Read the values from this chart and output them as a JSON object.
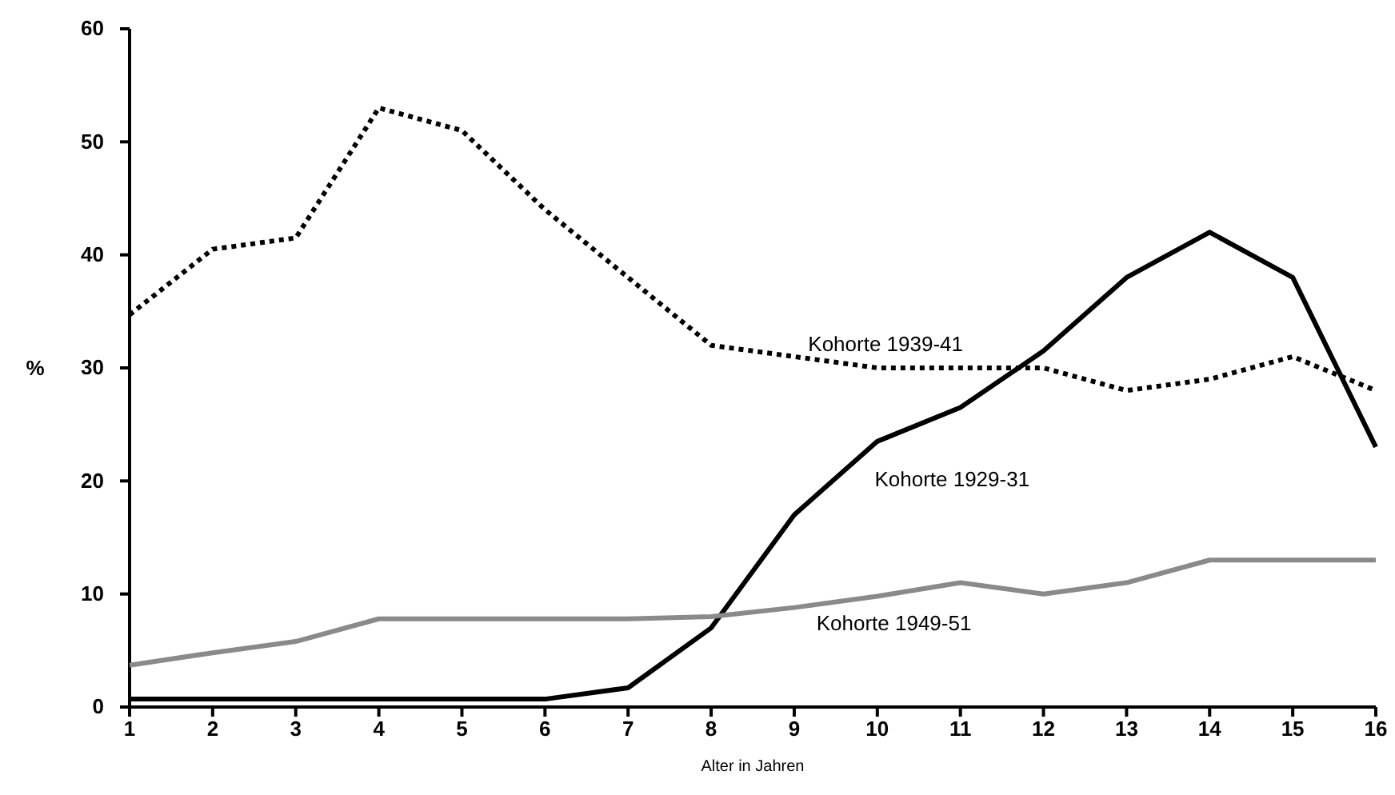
{
  "chart_data": {
    "type": "line",
    "xlabel": "Alter in Jahren",
    "ylabel": "%",
    "x": [
      1,
      2,
      3,
      4,
      5,
      6,
      7,
      8,
      9,
      10,
      11,
      12,
      13,
      14,
      15,
      16
    ],
    "xlim": [
      1,
      16
    ],
    "xticks": [
      1,
      2,
      3,
      4,
      5,
      6,
      7,
      8,
      9,
      10,
      11,
      12,
      13,
      14,
      15,
      16
    ],
    "ylim": [
      0,
      60
    ],
    "yticks": [
      0,
      10,
      20,
      30,
      40,
      50,
      60
    ],
    "grid": false,
    "marker": "none",
    "series": [
      {
        "name": "Kohorte 1939-41",
        "color": "#000000",
        "line_style": "dotted",
        "values": [
          34.7,
          40.5,
          41.5,
          53,
          51,
          44,
          38,
          32,
          31,
          30,
          30,
          30,
          28,
          29,
          31,
          28
        ]
      },
      {
        "name": "Kohorte 1929-31",
        "color": "#000000",
        "line_style": "solid",
        "values": [
          0.7,
          0.7,
          0.7,
          0.7,
          0.7,
          0.7,
          1.7,
          7,
          17,
          23.5,
          26.5,
          31.5,
          38,
          42,
          38,
          23
        ]
      },
      {
        "name": "Kohorte 1949-51",
        "color": "#8a8a8a",
        "line_style": "solid",
        "values": [
          3.7,
          4.8,
          5.8,
          7.8,
          7.8,
          7.8,
          7.8,
          8,
          8.8,
          9.8,
          11,
          10,
          11,
          13,
          13,
          13
        ]
      }
    ]
  }
}
